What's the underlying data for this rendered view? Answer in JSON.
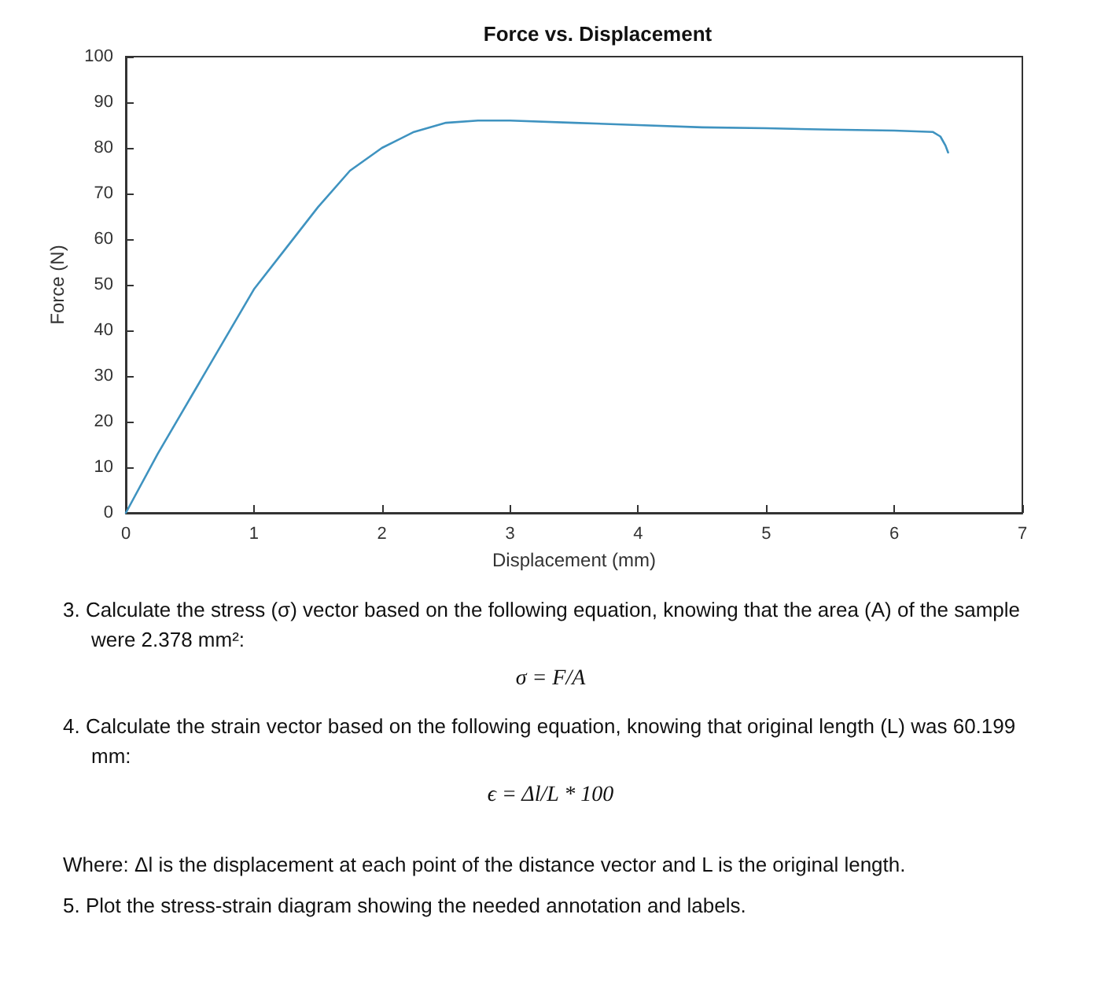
{
  "chart_data": {
    "type": "line",
    "title": "Force vs. Displacement",
    "xlabel": "Displacement (mm)",
    "ylabel": "Force (N)",
    "x": [
      0,
      0.25,
      0.5,
      0.75,
      1,
      1.25,
      1.5,
      1.75,
      2,
      2.25,
      2.5,
      2.75,
      3,
      3.5,
      4,
      4.5,
      5,
      5.5,
      6,
      6.3,
      6.36,
      6.4,
      6.42
    ],
    "series": [
      {
        "color": "#3f93c0",
        "values": [
          0,
          13,
          25,
          37,
          49,
          58,
          67,
          75,
          80,
          83.5,
          85.5,
          86,
          86,
          85.5,
          85,
          84.5,
          84.3,
          84,
          83.8,
          83.5,
          82.5,
          80.5,
          79
        ]
      }
    ],
    "xlim": [
      0,
      7
    ],
    "xticks": [
      0,
      1,
      2,
      3,
      4,
      5,
      6,
      7
    ],
    "ylim": [
      0,
      100
    ],
    "yticks": [
      0,
      10,
      20,
      30,
      40,
      50,
      60,
      70,
      80,
      90,
      100
    ],
    "grid": false,
    "marker": "none",
    "line_style": "solid",
    "annotations": [
      "3. Calculate the stress (σ) vector based on the following equation, knowing that the area (A) of the sample were 2.378 mm²:",
      "σ = F/A",
      "4. Calculate the strain vector based on the following equation, knowing that original length (L) was 60.199 mm:",
      "ϵ = Δl/L * 100",
      "Where: Δl is the displacement at each point of the distance vector and L is the original length.",
      "5. Plot the stress-strain diagram showing the needed annotation and labels."
    ]
  }
}
